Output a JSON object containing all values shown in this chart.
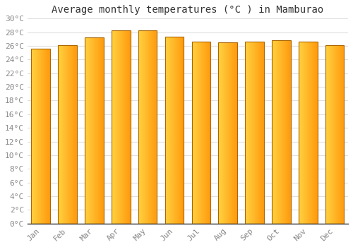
{
  "title": "Average monthly temperatures (°C ) in Mamburao",
  "months": [
    "Jan",
    "Feb",
    "Mar",
    "Apr",
    "May",
    "Jun",
    "Jul",
    "Aug",
    "Sep",
    "Oct",
    "Nov",
    "Dec"
  ],
  "temperatures": [
    25.6,
    26.1,
    27.2,
    28.3,
    28.3,
    27.3,
    26.6,
    26.5,
    26.6,
    26.8,
    26.6,
    26.1
  ],
  "bar_color_left": "#FFD060",
  "bar_color_right": "#FF9900",
  "bar_border_color": "#AA6600",
  "background_color": "#FFFFFF",
  "plot_bg_color": "#FFFFFF",
  "grid_color": "#E0E0E0",
  "ylim": [
    0,
    30
  ],
  "ytick_step": 2,
  "title_fontsize": 10,
  "tick_fontsize": 8,
  "font_family": "monospace"
}
